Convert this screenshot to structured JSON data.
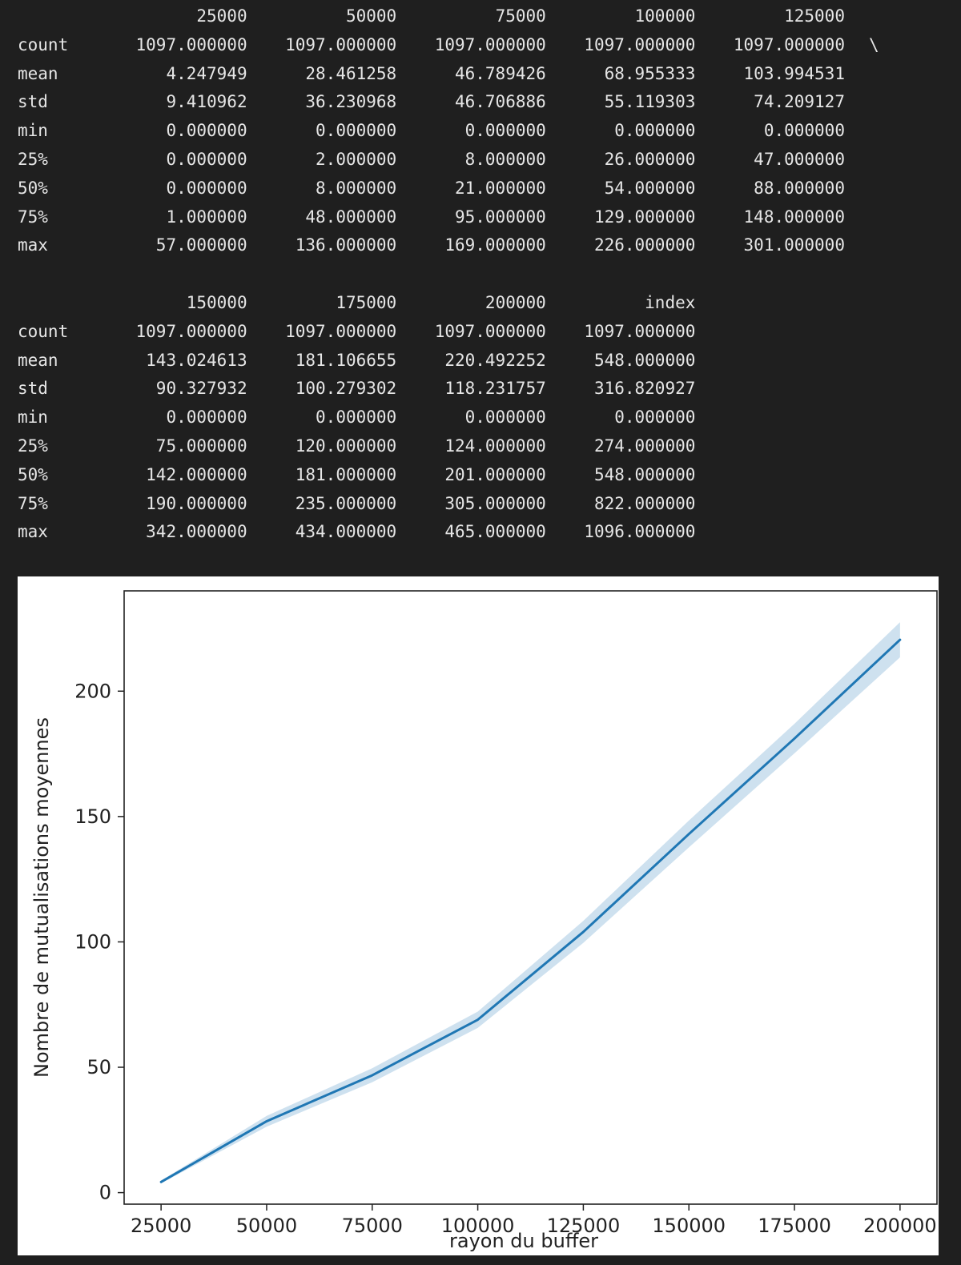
{
  "describe_output": {
    "row_labels": [
      "count",
      "mean",
      "std",
      "min",
      "25%",
      "50%",
      "75%",
      "max"
    ],
    "blocks": [
      {
        "columns": [
          "25000",
          "50000",
          "75000",
          "100000",
          "125000"
        ],
        "continuation_marker": "\\",
        "rows": [
          [
            "1097.000000",
            "1097.000000",
            "1097.000000",
            "1097.000000",
            "1097.000000"
          ],
          [
            "4.247949",
            "28.461258",
            "46.789426",
            "68.955333",
            "103.994531"
          ],
          [
            "9.410962",
            "36.230968",
            "46.706886",
            "55.119303",
            "74.209127"
          ],
          [
            "0.000000",
            "0.000000",
            "0.000000",
            "0.000000",
            "0.000000"
          ],
          [
            "0.000000",
            "2.000000",
            "8.000000",
            "26.000000",
            "47.000000"
          ],
          [
            "0.000000",
            "8.000000",
            "21.000000",
            "54.000000",
            "88.000000"
          ],
          [
            "1.000000",
            "48.000000",
            "95.000000",
            "129.000000",
            "148.000000"
          ],
          [
            "57.000000",
            "136.000000",
            "169.000000",
            "226.000000",
            "301.000000"
          ]
        ]
      },
      {
        "columns": [
          "150000",
          "175000",
          "200000",
          "index"
        ],
        "continuation_marker": "",
        "rows": [
          [
            "1097.000000",
            "1097.000000",
            "1097.000000",
            "1097.000000"
          ],
          [
            "143.024613",
            "181.106655",
            "220.492252",
            "548.000000"
          ],
          [
            "90.327932",
            "100.279302",
            "118.231757",
            "316.820927"
          ],
          [
            "0.000000",
            "0.000000",
            "0.000000",
            "0.000000"
          ],
          [
            "75.000000",
            "120.000000",
            "124.000000",
            "274.000000"
          ],
          [
            "142.000000",
            "181.000000",
            "201.000000",
            "548.000000"
          ],
          [
            "190.000000",
            "235.000000",
            "305.000000",
            "822.000000"
          ],
          [
            "342.000000",
            "434.000000",
            "465.000000",
            "1096.000000"
          ]
        ]
      }
    ]
  },
  "chart_data": {
    "type": "line",
    "xlabel": "rayon du buffer",
    "ylabel": "Nombre de mutualisations moyennes",
    "x": [
      25000,
      50000,
      75000,
      100000,
      125000,
      150000,
      175000,
      200000
    ],
    "y": [
      4.247949,
      28.461258,
      46.789426,
      68.955333,
      103.994531,
      143.024613,
      181.106655,
      220.492252
    ],
    "ci_lower": [
      3.7,
      26.3,
      44.0,
      65.7,
      99.6,
      137.7,
      175.2,
      213.5
    ],
    "ci_upper": [
      4.8,
      30.6,
      49.6,
      72.2,
      108.4,
      148.4,
      187.0,
      227.5
    ],
    "xlim": [
      16250,
      208750
    ],
    "ylim": [
      -4.6,
      240.0
    ],
    "xticks": [
      25000,
      50000,
      75000,
      100000,
      125000,
      150000,
      175000,
      200000
    ],
    "xtick_labels": [
      "25000",
      "50000",
      "75000",
      "100000",
      "125000",
      "150000",
      "175000",
      "200000"
    ],
    "yticks": [
      0,
      50,
      100,
      150,
      200
    ],
    "ytick_labels": [
      "0",
      "50",
      "100",
      "150",
      "200"
    ],
    "line_color": "#1f77b4",
    "band_color": "#1f77b4",
    "grid": false,
    "legend": "none"
  }
}
